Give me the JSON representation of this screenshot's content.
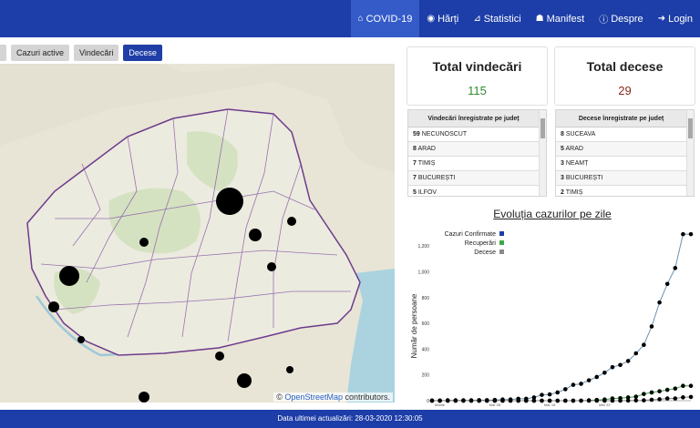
{
  "nav": {
    "items": [
      {
        "label": "COVID-19",
        "icon": "home-icon",
        "glyph": "⌂",
        "active": true
      },
      {
        "label": "Hărți",
        "icon": "map-icon",
        "glyph": "◉",
        "active": false
      },
      {
        "label": "Statistici",
        "icon": "chart-icon",
        "glyph": "⊿",
        "active": false
      },
      {
        "label": "Manifest",
        "icon": "users-icon",
        "glyph": "☗",
        "active": false
      },
      {
        "label": "Despre",
        "icon": "info-icon",
        "glyph": "ⓘ",
        "active": false
      },
      {
        "label": "Login",
        "icon": "login-icon",
        "glyph": "➜",
        "active": false
      }
    ]
  },
  "filters": [
    "Cazuri active",
    "Vindecări",
    "Decese"
  ],
  "filters_active": "Decese",
  "map": {
    "attribution_prefix": "© ",
    "attribution_link": "OpenStreetMap",
    "attribution_suffix": " contributors."
  },
  "cards": {
    "recovered_title": "Total vindecări",
    "recovered_value": "115",
    "deaths_title": "Total decese",
    "deaths_value": "29"
  },
  "colors": {
    "nav": "#1d3ea8",
    "recovered": "#2e8b2e",
    "deaths": "#8b2a1c",
    "confirmed_series": "#1d3ea8",
    "recovered_series": "#3aa84a",
    "deaths_series": "#8a8a8a"
  },
  "recovered_table": {
    "header": "Vindecări înregistrate pe județ",
    "rows": [
      {
        "count": "59",
        "county": "NECUNOSCUT"
      },
      {
        "count": "8",
        "county": "ARAD"
      },
      {
        "count": "7",
        "county": "TIMIȘ"
      },
      {
        "count": "7",
        "county": "BUCUREȘTI"
      },
      {
        "count": "5",
        "county": "ILFOV"
      }
    ]
  },
  "deaths_table": {
    "header": "Decese înregistrate pe județ",
    "rows": [
      {
        "count": "8",
        "county": "SUCEAVA"
      },
      {
        "count": "5",
        "county": "ARAD"
      },
      {
        "count": "3",
        "county": "NEAMȚ"
      },
      {
        "count": "3",
        "county": "BUCUREȘTI"
      },
      {
        "count": "2",
        "county": "TIMIȘ"
      }
    ]
  },
  "chart_data": {
    "type": "line",
    "title": "Evoluția cazurilor pe zile",
    "ylabel": "Număr de persoane",
    "xlabel": "",
    "ylim": [
      0,
      1300
    ],
    "yticks": [
      "0",
      "200",
      "400",
      "600",
      "800",
      "1,000",
      "1,200"
    ],
    "ytick_values": [
      0,
      200,
      400,
      600,
      800,
      1000,
      1200
    ],
    "xtick_labels": [
      "Martie",
      "Mar 08",
      "Mar 15",
      "Mar 22"
    ],
    "legend": [
      "Cazuri Confirmate",
      "Recuperări",
      "Decese"
    ],
    "legend_position": "top-left",
    "series": [
      {
        "name": "Cazuri Confirmate",
        "values": [
          1,
          1,
          3,
          3,
          3,
          3,
          4,
          4,
          6,
          9,
          9,
          15,
          15,
          25,
          45,
          49,
          64,
          89,
          123,
          131,
          158,
          184,
          217,
          260,
          277,
          308,
          367,
          433,
          576,
          762,
          906,
          1029,
          1292,
          1292
        ]
      },
      {
        "name": "Recuperări",
        "values": [
          0,
          0,
          0,
          0,
          0,
          0,
          0,
          0,
          0,
          0,
          0,
          0,
          0,
          0,
          0,
          0,
          0,
          0,
          0,
          0,
          3,
          6,
          9,
          17,
          19,
          25,
          31,
          52,
          64,
          73,
          84,
          94,
          115,
          115
        ]
      },
      {
        "name": "Decese",
        "values": [
          0,
          0,
          0,
          0,
          0,
          0,
          0,
          0,
          0,
          0,
          0,
          0,
          0,
          0,
          0,
          0,
          0,
          0,
          0,
          0,
          0,
          0,
          0,
          0,
          0,
          1,
          2,
          3,
          7,
          11,
          17,
          17,
          26,
          29
        ]
      }
    ]
  },
  "footer": {
    "text": "Data ultimei actualizări: 28-03-2020 12:30:05"
  }
}
